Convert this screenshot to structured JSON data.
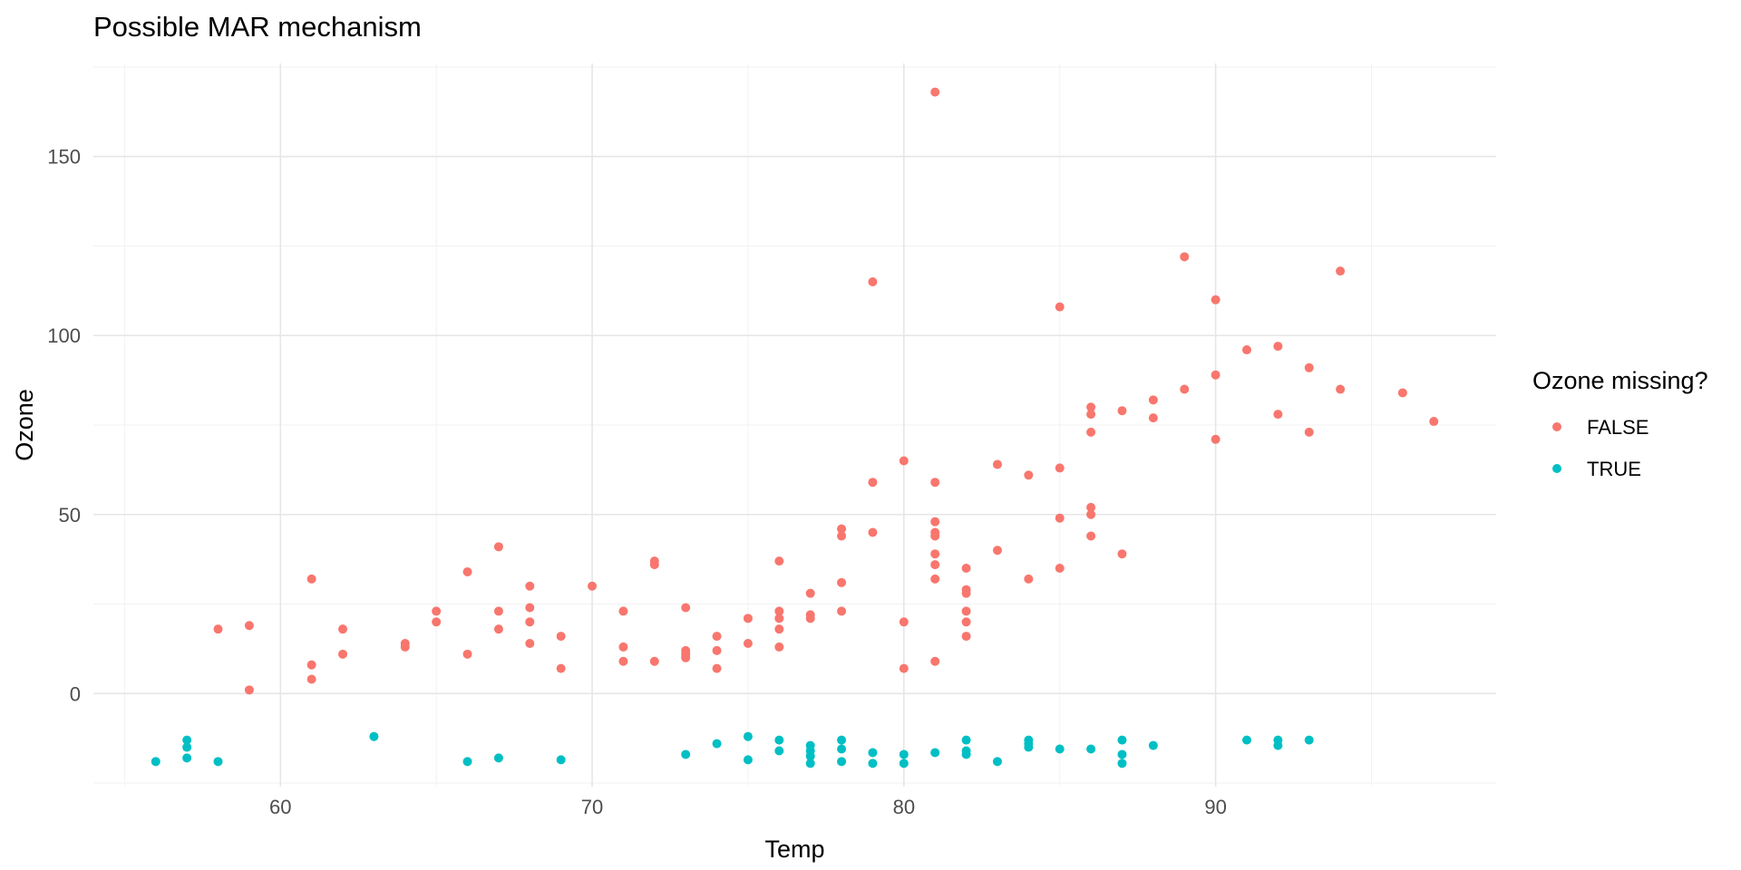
{
  "chart_data": {
    "type": "scatter",
    "title": "Possible MAR mechanism",
    "xlabel": "Temp",
    "ylabel": "Ozone",
    "xlim": [
      54,
      99
    ],
    "ylim": [
      -26,
      176
    ],
    "xticks": [
      "60",
      "70",
      "80",
      "90"
    ],
    "xtick_values": [
      60,
      70,
      80,
      90
    ],
    "yticks": [
      "0",
      "50",
      "100",
      "150"
    ],
    "ytick_values": [
      0,
      50,
      100,
      150
    ],
    "grid": true,
    "legend": {
      "title": "Ozone missing?",
      "position": "right",
      "entries": [
        "FALSE",
        "TRUE"
      ]
    },
    "series": [
      {
        "name": "FALSE",
        "color": "#F8766D",
        "points": [
          [
            58,
            18
          ],
          [
            59,
            19
          ],
          [
            59,
            1
          ],
          [
            61,
            32
          ],
          [
            61,
            8
          ],
          [
            61,
            4
          ],
          [
            62,
            18
          ],
          [
            62,
            11
          ],
          [
            64,
            14
          ],
          [
            64,
            13
          ],
          [
            65,
            23
          ],
          [
            65,
            20
          ],
          [
            66,
            34
          ],
          [
            66,
            11
          ],
          [
            67,
            41
          ],
          [
            67,
            23
          ],
          [
            67,
            18
          ],
          [
            68,
            30
          ],
          [
            68,
            24
          ],
          [
            68,
            20
          ],
          [
            68,
            14
          ],
          [
            69,
            16
          ],
          [
            69,
            7
          ],
          [
            70,
            30
          ],
          [
            71,
            23
          ],
          [
            71,
            13
          ],
          [
            71,
            9
          ],
          [
            72,
            37
          ],
          [
            72,
            36
          ],
          [
            72,
            9
          ],
          [
            73,
            24
          ],
          [
            73,
            12
          ],
          [
            73,
            11
          ],
          [
            73,
            10
          ],
          [
            74,
            16
          ],
          [
            74,
            12
          ],
          [
            74,
            7
          ],
          [
            75,
            21
          ],
          [
            75,
            14
          ],
          [
            76,
            37
          ],
          [
            76,
            23
          ],
          [
            76,
            21
          ],
          [
            76,
            18
          ],
          [
            76,
            13
          ],
          [
            77,
            28
          ],
          [
            77,
            22
          ],
          [
            77,
            21
          ],
          [
            78,
            46
          ],
          [
            78,
            44
          ],
          [
            78,
            31
          ],
          [
            78,
            23
          ],
          [
            79,
            115
          ],
          [
            79,
            59
          ],
          [
            79,
            45
          ],
          [
            80,
            65
          ],
          [
            80,
            20
          ],
          [
            80,
            7
          ],
          [
            81,
            168
          ],
          [
            81,
            59
          ],
          [
            81,
            48
          ],
          [
            81,
            45
          ],
          [
            81,
            44
          ],
          [
            81,
            39
          ],
          [
            81,
            36
          ],
          [
            81,
            32
          ],
          [
            81,
            9
          ],
          [
            82,
            35
          ],
          [
            82,
            29
          ],
          [
            82,
            28
          ],
          [
            82,
            23
          ],
          [
            82,
            20
          ],
          [
            82,
            16
          ],
          [
            83,
            64
          ],
          [
            83,
            40
          ],
          [
            84,
            61
          ],
          [
            84,
            32
          ],
          [
            85,
            108
          ],
          [
            85,
            63
          ],
          [
            85,
            49
          ],
          [
            85,
            35
          ],
          [
            86,
            80
          ],
          [
            86,
            78
          ],
          [
            86,
            73
          ],
          [
            86,
            52
          ],
          [
            86,
            50
          ],
          [
            86,
            44
          ],
          [
            87,
            79
          ],
          [
            87,
            39
          ],
          [
            88,
            82
          ],
          [
            88,
            77
          ],
          [
            89,
            122
          ],
          [
            89,
            85
          ],
          [
            90,
            110
          ],
          [
            90,
            89
          ],
          [
            90,
            71
          ],
          [
            91,
            96
          ],
          [
            92,
            97
          ],
          [
            92,
            78
          ],
          [
            93,
            91
          ],
          [
            93,
            73
          ],
          [
            94,
            118
          ],
          [
            94,
            85
          ],
          [
            96,
            84
          ],
          [
            97,
            76
          ]
        ]
      },
      {
        "name": "TRUE",
        "color": "#00BFC4",
        "points": [
          [
            56,
            -19
          ],
          [
            57,
            -13
          ],
          [
            57,
            -15
          ],
          [
            57,
            -18
          ],
          [
            58,
            -19
          ],
          [
            63,
            -12
          ],
          [
            66,
            -19
          ],
          [
            67,
            -18
          ],
          [
            69,
            -18.5
          ],
          [
            73,
            -17
          ],
          [
            74,
            -14
          ],
          [
            75,
            -12
          ],
          [
            75,
            -18.5
          ],
          [
            76,
            -13
          ],
          [
            76,
            -16
          ],
          [
            77,
            -14.5
          ],
          [
            77,
            -16
          ],
          [
            77,
            -17.5
          ],
          [
            77,
            -19.5
          ],
          [
            78,
            -13
          ],
          [
            78,
            -15.5
          ],
          [
            78,
            -19
          ],
          [
            79,
            -16.5
          ],
          [
            79,
            -19.5
          ],
          [
            80,
            -17
          ],
          [
            80,
            -19.5
          ],
          [
            81,
            -16.5
          ],
          [
            82,
            -13
          ],
          [
            82,
            -16
          ],
          [
            82,
            -17
          ],
          [
            83,
            -19
          ],
          [
            84,
            -13
          ],
          [
            84,
            -14
          ],
          [
            84,
            -15
          ],
          [
            85,
            -15.5
          ],
          [
            86,
            -15.5
          ],
          [
            87,
            -13
          ],
          [
            87,
            -17
          ],
          [
            87,
            -19.5
          ],
          [
            88,
            -14.5
          ],
          [
            91,
            -13
          ],
          [
            92,
            -13
          ],
          [
            92,
            -14.5
          ],
          [
            93,
            -13
          ]
        ]
      }
    ]
  }
}
